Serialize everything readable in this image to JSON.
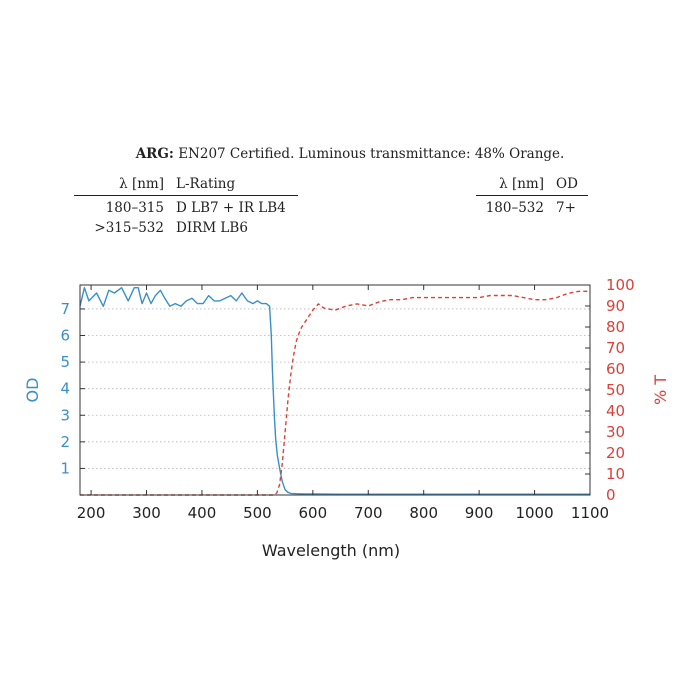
{
  "header": {
    "brand": "ARG:",
    "description": "EN207 Certified. Luminous transmittance: 48% Orange."
  },
  "lrating_table": {
    "headers": [
      "λ [nm]",
      "L-Rating"
    ],
    "rows": [
      [
        "180–315",
        "D LB7 + IR LB4"
      ],
      [
        ">315–532",
        "DIRM LB6"
      ]
    ]
  },
  "od_table": {
    "headers": [
      "λ [nm]",
      "OD"
    ],
    "rows": [
      [
        "180–532",
        "7+"
      ]
    ]
  },
  "chart_data": {
    "type": "line",
    "xlabel": "Wavelength (nm)",
    "ylabel": "OD",
    "y2label": "% T",
    "xlim": [
      180,
      1100
    ],
    "ylim": [
      0,
      7.9
    ],
    "y2lim": [
      0,
      100
    ],
    "xticks": [
      200,
      300,
      400,
      500,
      600,
      700,
      800,
      900,
      1000,
      1100
    ],
    "yticks": [
      1,
      2,
      3,
      4,
      5,
      6,
      7
    ],
    "y2ticks": [
      0,
      10,
      20,
      30,
      40,
      50,
      60,
      70,
      80,
      90,
      100
    ],
    "grid": "horizontal dotted",
    "colors": {
      "od": "#3a8fc8",
      "transmittance": "#d9413a"
    },
    "series": [
      {
        "axis": "left",
        "style": "solid",
        "x": [
          180,
          188,
          196,
          210,
          222,
          232,
          242,
          255,
          267,
          278,
          285,
          292,
          300,
          308,
          316,
          325,
          333,
          342,
          352,
          362,
          372,
          382,
          392,
          402,
          412,
          422,
          432,
          442,
          452,
          462,
          472,
          482,
          492,
          500,
          508,
          516,
          522,
          525,
          527,
          529,
          531,
          533,
          536,
          540,
          545,
          550,
          555,
          560,
          570,
          585,
          600,
          650,
          700,
          750,
          800,
          850,
          900,
          950,
          1000,
          1050,
          1100
        ],
        "values": [
          7.1,
          7.8,
          7.3,
          7.6,
          7.1,
          7.7,
          7.6,
          7.8,
          7.3,
          7.8,
          7.8,
          7.2,
          7.6,
          7.2,
          7.5,
          7.7,
          7.4,
          7.1,
          7.2,
          7.1,
          7.3,
          7.4,
          7.2,
          7.2,
          7.5,
          7.3,
          7.3,
          7.4,
          7.5,
          7.3,
          7.6,
          7.3,
          7.2,
          7.3,
          7.2,
          7.2,
          7.1,
          6.0,
          4.7,
          3.7,
          2.8,
          2.1,
          1.5,
          1.0,
          0.5,
          0.2,
          0.1,
          0.06,
          0.05,
          0.04,
          0.04,
          0.03,
          0.03,
          0.03,
          0.03,
          0.03,
          0.03,
          0.03,
          0.03,
          0.03,
          0.03
        ]
      },
      {
        "axis": "right",
        "style": "dashed",
        "x": [
          180,
          300,
          400,
          500,
          530,
          535,
          540,
          545,
          550,
          555,
          560,
          565,
          570,
          575,
          580,
          590,
          600,
          610,
          620,
          640,
          660,
          680,
          700,
          720,
          740,
          760,
          780,
          800,
          820,
          840,
          860,
          880,
          900,
          920,
          940,
          960,
          980,
          1000,
          1020,
          1040,
          1060,
          1080,
          1100
        ],
        "values": [
          0,
          0,
          0,
          0,
          0,
          1,
          5,
          15,
          30,
          45,
          57,
          66,
          73,
          77,
          80,
          84,
          88,
          91,
          89,
          88,
          90,
          91,
          90,
          92,
          93,
          93,
          94,
          94,
          94,
          94,
          94,
          94,
          94,
          95,
          95,
          95,
          94,
          93,
          93,
          94,
          96,
          97,
          97
        ]
      }
    ]
  }
}
